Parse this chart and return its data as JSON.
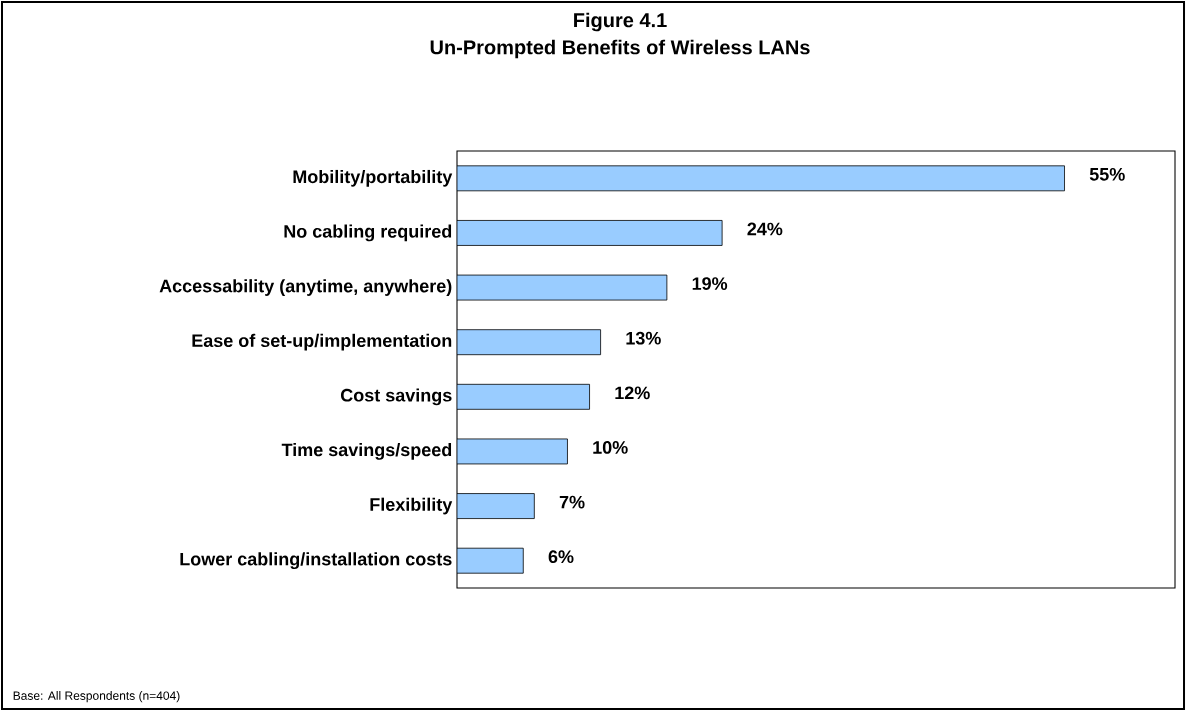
{
  "chart_data": {
    "type": "bar",
    "orientation": "horizontal",
    "title": "Figure 4.1",
    "subtitle": "Un-Prompted Benefits of Wireless LANs",
    "categories": [
      "Mobility/portability",
      "No cabling required",
      "Accessability (anytime, anywhere)",
      "Ease of set-up/implementation",
      "Cost savings",
      "Time savings/speed",
      "Flexibility",
      "Lower cabling/installation costs"
    ],
    "values": [
      55,
      24,
      19,
      13,
      12,
      10,
      7,
      6
    ],
    "value_labels": [
      "55%",
      "24%",
      "19%",
      "13%",
      "12%",
      "10%",
      "7%",
      "6%"
    ],
    "color": "#99ccff",
    "xlim": [
      0,
      65
    ],
    "tick_labels": "y",
    "annotations": [
      "Base: All Respondents (n=404)"
    ]
  }
}
